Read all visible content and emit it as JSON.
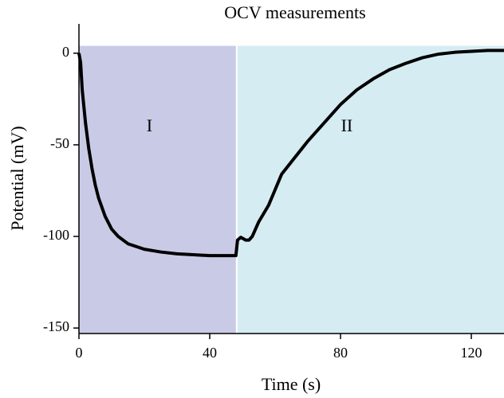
{
  "chart_data": {
    "type": "line",
    "title": "OCV measurements",
    "x_label": "Time (s)",
    "y_label": "Potential (mV)",
    "xlim": [
      0,
      130
    ],
    "ylim": [
      -153,
      16
    ],
    "xticks": [
      0,
      40,
      80,
      120
    ],
    "yticks": [
      0,
      -50,
      -100,
      -150
    ],
    "regions": [
      {
        "label": "I",
        "xlim": [
          0,
          48
        ],
        "ylim": [
          -153,
          4
        ],
        "color": "#c9cbe6"
      },
      {
        "label": "II",
        "xlim": [
          48.5,
          130
        ],
        "ylim": [
          -153,
          4
        ],
        "color": "#d5ecf3"
      }
    ],
    "series": [
      {
        "name": "OCV",
        "color": "#000000",
        "x": [
          0,
          0.5,
          1,
          2,
          3,
          4,
          5,
          6,
          8,
          10,
          12,
          15,
          20,
          25,
          30,
          35,
          40,
          45,
          48,
          48.5,
          49.5,
          51,
          52,
          53,
          55,
          58,
          62,
          66,
          70,
          75,
          80,
          85,
          90,
          95,
          100,
          105,
          110,
          115,
          120,
          125,
          130
        ],
        "values": [
          0,
          -5,
          -20,
          -38,
          -52,
          -63,
          -72,
          -79,
          -89,
          -96,
          -100,
          -104,
          -107,
          -108.5,
          -109.5,
          -110,
          -110.5,
          -110.5,
          -110.5,
          -102,
          -100.5,
          -102,
          -102,
          -100,
          -92,
          -83,
          -66,
          -57,
          -48,
          -38,
          -28,
          -20,
          -14,
          -9,
          -5.5,
          -2.5,
          -0.5,
          0.5,
          1,
          1.5,
          1.5
        ]
      }
    ]
  }
}
